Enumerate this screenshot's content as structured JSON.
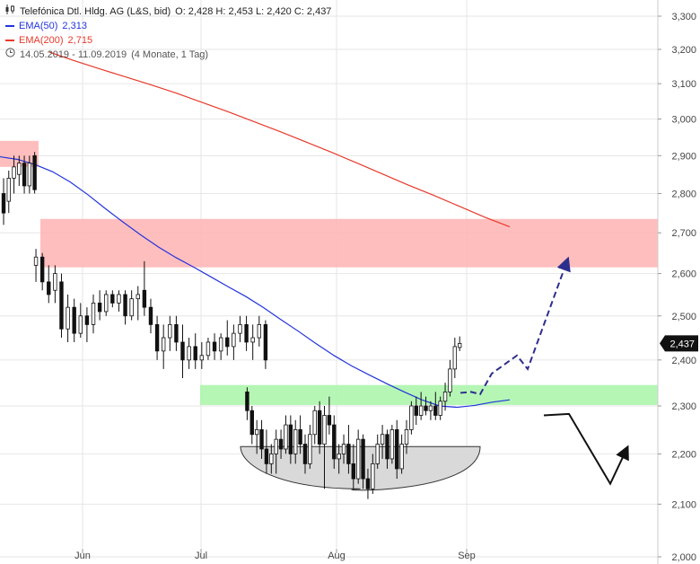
{
  "header": {
    "instrument": "Telefónica Dtl. Hldg. AG (L&S, bid)",
    "ohlc": "O: 2,428  H: 2,453  L: 2,420  C: 2,437"
  },
  "legend": [
    {
      "label": "EMA(50)",
      "value": "2,313",
      "color": "#2233dd"
    },
    {
      "label": "EMA(200)",
      "value": "2,715",
      "color": "#e8392a"
    }
  ],
  "period": {
    "range": "14.05.2019 - 11.09.2019",
    "detail": "(4 Monate, 1 Tag)"
  },
  "colors": {
    "ema50": "#2233dd",
    "ema200": "#e8392a",
    "resistance_zone": "#ffb3b3",
    "support_zone": "#a8f5a8",
    "projection_arrow": "#2e2e8c",
    "last_price_badge_bg": "#111111",
    "cup_fill": "#d9d9d9"
  },
  "icons": [
    "candlestick-chart-icon",
    "clock-icon"
  ],
  "chart_data": {
    "type": "candlestick",
    "ylim": [
      2.0,
      3.35
    ],
    "y_ticks": [
      "2,000",
      "2,100",
      "2,200",
      "2,300",
      "2,400",
      "2,500",
      "2,600",
      "2,700",
      "2,800",
      "2,900",
      "3,000",
      "3,100",
      "3,200",
      "3,300"
    ],
    "x_ticks": [
      "Jun",
      "Jul",
      "Aug",
      "Sep"
    ],
    "last_price": "2,437",
    "candles": [
      {
        "o": 2.8,
        "h": 2.84,
        "l": 2.72,
        "c": 2.75
      },
      {
        "o": 2.78,
        "h": 2.86,
        "l": 2.75,
        "c": 2.84
      },
      {
        "o": 2.84,
        "h": 2.9,
        "l": 2.8,
        "c": 2.87
      },
      {
        "o": 2.85,
        "h": 2.9,
        "l": 2.82,
        "c": 2.88
      },
      {
        "o": 2.88,
        "h": 2.9,
        "l": 2.8,
        "c": 2.82
      },
      {
        "o": 2.82,
        "h": 2.9,
        "l": 2.8,
        "c": 2.88
      },
      {
        "o": 2.9,
        "h": 2.91,
        "l": 2.8,
        "c": 2.81
      },
      {
        "o": 2.62,
        "h": 2.66,
        "l": 2.58,
        "c": 2.64
      },
      {
        "o": 2.64,
        "h": 2.65,
        "l": 2.56,
        "c": 2.58
      },
      {
        "o": 2.58,
        "h": 2.62,
        "l": 2.53,
        "c": 2.55
      },
      {
        "o": 2.56,
        "h": 2.62,
        "l": 2.53,
        "c": 2.6
      },
      {
        "o": 2.58,
        "h": 2.6,
        "l": 2.45,
        "c": 2.47
      },
      {
        "o": 2.47,
        "h": 2.55,
        "l": 2.44,
        "c": 2.52
      },
      {
        "o": 2.52,
        "h": 2.54,
        "l": 2.44,
        "c": 2.46
      },
      {
        "o": 2.46,
        "h": 2.53,
        "l": 2.45,
        "c": 2.5
      },
      {
        "o": 2.5,
        "h": 2.52,
        "l": 2.44,
        "c": 2.48
      },
      {
        "o": 2.48,
        "h": 2.55,
        "l": 2.46,
        "c": 2.53
      },
      {
        "o": 2.53,
        "h": 2.56,
        "l": 2.49,
        "c": 2.51
      },
      {
        "o": 2.51,
        "h": 2.56,
        "l": 2.5,
        "c": 2.55
      },
      {
        "o": 2.55,
        "h": 2.56,
        "l": 2.52,
        "c": 2.53
      },
      {
        "o": 2.53,
        "h": 2.56,
        "l": 2.51,
        "c": 2.55
      },
      {
        "o": 2.55,
        "h": 2.56,
        "l": 2.48,
        "c": 2.5
      },
      {
        "o": 2.5,
        "h": 2.56,
        "l": 2.49,
        "c": 2.54
      },
      {
        "o": 2.54,
        "h": 2.57,
        "l": 2.49,
        "c": 2.55
      },
      {
        "o": 2.56,
        "h": 2.63,
        "l": 2.5,
        "c": 2.52
      },
      {
        "o": 2.52,
        "h": 2.54,
        "l": 2.46,
        "c": 2.48
      },
      {
        "o": 2.48,
        "h": 2.5,
        "l": 2.4,
        "c": 2.42
      },
      {
        "o": 2.42,
        "h": 2.48,
        "l": 2.38,
        "c": 2.45
      },
      {
        "o": 2.45,
        "h": 2.5,
        "l": 2.42,
        "c": 2.48
      },
      {
        "o": 2.48,
        "h": 2.5,
        "l": 2.42,
        "c": 2.44
      },
      {
        "o": 2.44,
        "h": 2.48,
        "l": 2.36,
        "c": 2.4
      },
      {
        "o": 2.4,
        "h": 2.45,
        "l": 2.38,
        "c": 2.43
      },
      {
        "o": 2.43,
        "h": 2.46,
        "l": 2.38,
        "c": 2.4
      },
      {
        "o": 2.4,
        "h": 2.44,
        "l": 2.38,
        "c": 2.41
      },
      {
        "o": 2.41,
        "h": 2.45,
        "l": 2.4,
        "c": 2.44
      },
      {
        "o": 2.44,
        "h": 2.46,
        "l": 2.4,
        "c": 2.42
      },
      {
        "o": 2.42,
        "h": 2.46,
        "l": 2.4,
        "c": 2.45
      },
      {
        "o": 2.45,
        "h": 2.49,
        "l": 2.41,
        "c": 2.43
      },
      {
        "o": 2.43,
        "h": 2.48,
        "l": 2.4,
        "c": 2.46
      },
      {
        "o": 2.46,
        "h": 2.5,
        "l": 2.44,
        "c": 2.48
      },
      {
        "o": 2.48,
        "h": 2.5,
        "l": 2.42,
        "c": 2.44
      },
      {
        "o": 2.44,
        "h": 2.48,
        "l": 2.4,
        "c": 2.45
      },
      {
        "o": 2.45,
        "h": 2.5,
        "l": 2.43,
        "c": 2.48
      },
      {
        "o": 2.48,
        "h": 2.49,
        "l": 2.38,
        "c": 2.4
      },
      {
        "o": 2.33,
        "h": 2.34,
        "l": 2.27,
        "c": 2.29
      },
      {
        "o": 2.29,
        "h": 2.3,
        "l": 2.22,
        "c": 2.24
      },
      {
        "o": 2.24,
        "h": 2.27,
        "l": 2.2,
        "c": 2.25
      },
      {
        "o": 2.25,
        "h": 2.27,
        "l": 2.19,
        "c": 2.21
      },
      {
        "o": 2.21,
        "h": 2.25,
        "l": 2.16,
        "c": 2.18
      },
      {
        "o": 2.18,
        "h": 2.22,
        "l": 2.16,
        "c": 2.2
      },
      {
        "o": 2.2,
        "h": 2.25,
        "l": 2.16,
        "c": 2.23
      },
      {
        "o": 2.23,
        "h": 2.25,
        "l": 2.19,
        "c": 2.21
      },
      {
        "o": 2.21,
        "h": 2.28,
        "l": 2.2,
        "c": 2.26
      },
      {
        "o": 2.26,
        "h": 2.28,
        "l": 2.18,
        "c": 2.2
      },
      {
        "o": 2.2,
        "h": 2.27,
        "l": 2.18,
        "c": 2.25
      },
      {
        "o": 2.25,
        "h": 2.28,
        "l": 2.2,
        "c": 2.22
      },
      {
        "o": 2.22,
        "h": 2.24,
        "l": 2.16,
        "c": 2.18
      },
      {
        "o": 2.18,
        "h": 2.26,
        "l": 2.17,
        "c": 2.24
      },
      {
        "o": 2.24,
        "h": 2.3,
        "l": 2.22,
        "c": 2.29
      },
      {
        "o": 2.29,
        "h": 2.31,
        "l": 2.2,
        "c": 2.22
      },
      {
        "o": 2.22,
        "h": 2.3,
        "l": 2.13,
        "c": 2.28
      },
      {
        "o": 2.28,
        "h": 2.32,
        "l": 2.24,
        "c": 2.26
      },
      {
        "o": 2.26,
        "h": 2.28,
        "l": 2.17,
        "c": 2.19
      },
      {
        "o": 2.19,
        "h": 2.22,
        "l": 2.16,
        "c": 2.2
      },
      {
        "o": 2.2,
        "h": 2.24,
        "l": 2.18,
        "c": 2.22
      },
      {
        "o": 2.22,
        "h": 2.26,
        "l": 2.16,
        "c": 2.18
      },
      {
        "o": 2.18,
        "h": 2.22,
        "l": 2.13,
        "c": 2.15
      },
      {
        "o": 2.15,
        "h": 2.25,
        "l": 2.14,
        "c": 2.23
      },
      {
        "o": 2.23,
        "h": 2.24,
        "l": 2.13,
        "c": 2.15
      },
      {
        "o": 2.15,
        "h": 2.17,
        "l": 2.11,
        "c": 2.13
      },
      {
        "o": 2.13,
        "h": 2.2,
        "l": 2.12,
        "c": 2.18
      },
      {
        "o": 2.18,
        "h": 2.24,
        "l": 2.17,
        "c": 2.22
      },
      {
        "o": 2.22,
        "h": 2.26,
        "l": 2.19,
        "c": 2.24
      },
      {
        "o": 2.24,
        "h": 2.25,
        "l": 2.17,
        "c": 2.19
      },
      {
        "o": 2.19,
        "h": 2.26,
        "l": 2.18,
        "c": 2.25
      },
      {
        "o": 2.25,
        "h": 2.27,
        "l": 2.15,
        "c": 2.17
      },
      {
        "o": 2.17,
        "h": 2.24,
        "l": 2.16,
        "c": 2.22
      },
      {
        "o": 2.22,
        "h": 2.27,
        "l": 2.2,
        "c": 2.25
      },
      {
        "o": 2.25,
        "h": 2.31,
        "l": 2.24,
        "c": 2.3
      },
      {
        "o": 2.3,
        "h": 2.32,
        "l": 2.26,
        "c": 2.28
      },
      {
        "o": 2.28,
        "h": 2.33,
        "l": 2.27,
        "c": 2.3
      },
      {
        "o": 2.3,
        "h": 2.32,
        "l": 2.28,
        "c": 2.29
      },
      {
        "o": 2.29,
        "h": 2.31,
        "l": 2.27,
        "c": 2.3
      },
      {
        "o": 2.3,
        "h": 2.33,
        "l": 2.27,
        "c": 2.28
      },
      {
        "o": 2.28,
        "h": 2.32,
        "l": 2.27,
        "c": 2.31
      },
      {
        "o": 2.31,
        "h": 2.35,
        "l": 2.29,
        "c": 2.33
      },
      {
        "o": 2.33,
        "h": 2.4,
        "l": 2.32,
        "c": 2.38
      },
      {
        "o": 2.38,
        "h": 2.45,
        "l": 2.36,
        "c": 2.43
      },
      {
        "o": 2.428,
        "h": 2.453,
        "l": 2.42,
        "c": 2.437
      }
    ],
    "ema50": [
      2.897,
      2.89,
      2.876,
      2.857,
      2.83,
      2.797,
      2.761,
      2.727,
      2.695,
      2.665,
      2.639,
      2.616,
      2.592,
      2.568,
      2.545,
      2.519,
      2.491,
      2.464,
      2.436,
      2.41,
      2.387,
      2.367,
      2.348,
      2.33,
      2.313,
      2.3,
      2.297,
      2.301,
      2.308,
      2.313
    ],
    "ema200": [
      3.192,
      3.166,
      3.142,
      3.119,
      3.096,
      3.072,
      3.046,
      3.02,
      2.993,
      2.966,
      2.938,
      2.91,
      2.881,
      2.852,
      2.823,
      2.796,
      2.768,
      2.74,
      2.715
    ],
    "zones": [
      {
        "kind": "resistance",
        "y_range": [
          2.87,
          2.94
        ],
        "t_range": [
          0,
          8
        ]
      },
      {
        "kind": "resistance",
        "y_range": [
          2.615,
          2.735
        ],
        "t_range": [
          8,
          118
        ]
      },
      {
        "kind": "support",
        "y_range": [
          2.302,
          2.345
        ],
        "t_range": [
          44,
          118
        ]
      }
    ],
    "cup": {
      "y_top": 2.215,
      "y_bottom": 2.13,
      "t_range": [
        47,
        106
      ]
    },
    "projection_bull": [
      [
        102,
        2.285
      ],
      [
        103,
        2.33
      ],
      [
        104,
        2.31
      ],
      [
        108,
        2.38
      ],
      [
        111,
        2.41
      ],
      [
        114,
        2.375
      ],
      [
        124,
        2.625
      ]
    ],
    "projection_bear": [
      [
        121,
        2.28
      ],
      [
        127,
        2.285
      ],
      [
        138,
        2.14
      ],
      [
        143,
        2.21
      ]
    ]
  }
}
